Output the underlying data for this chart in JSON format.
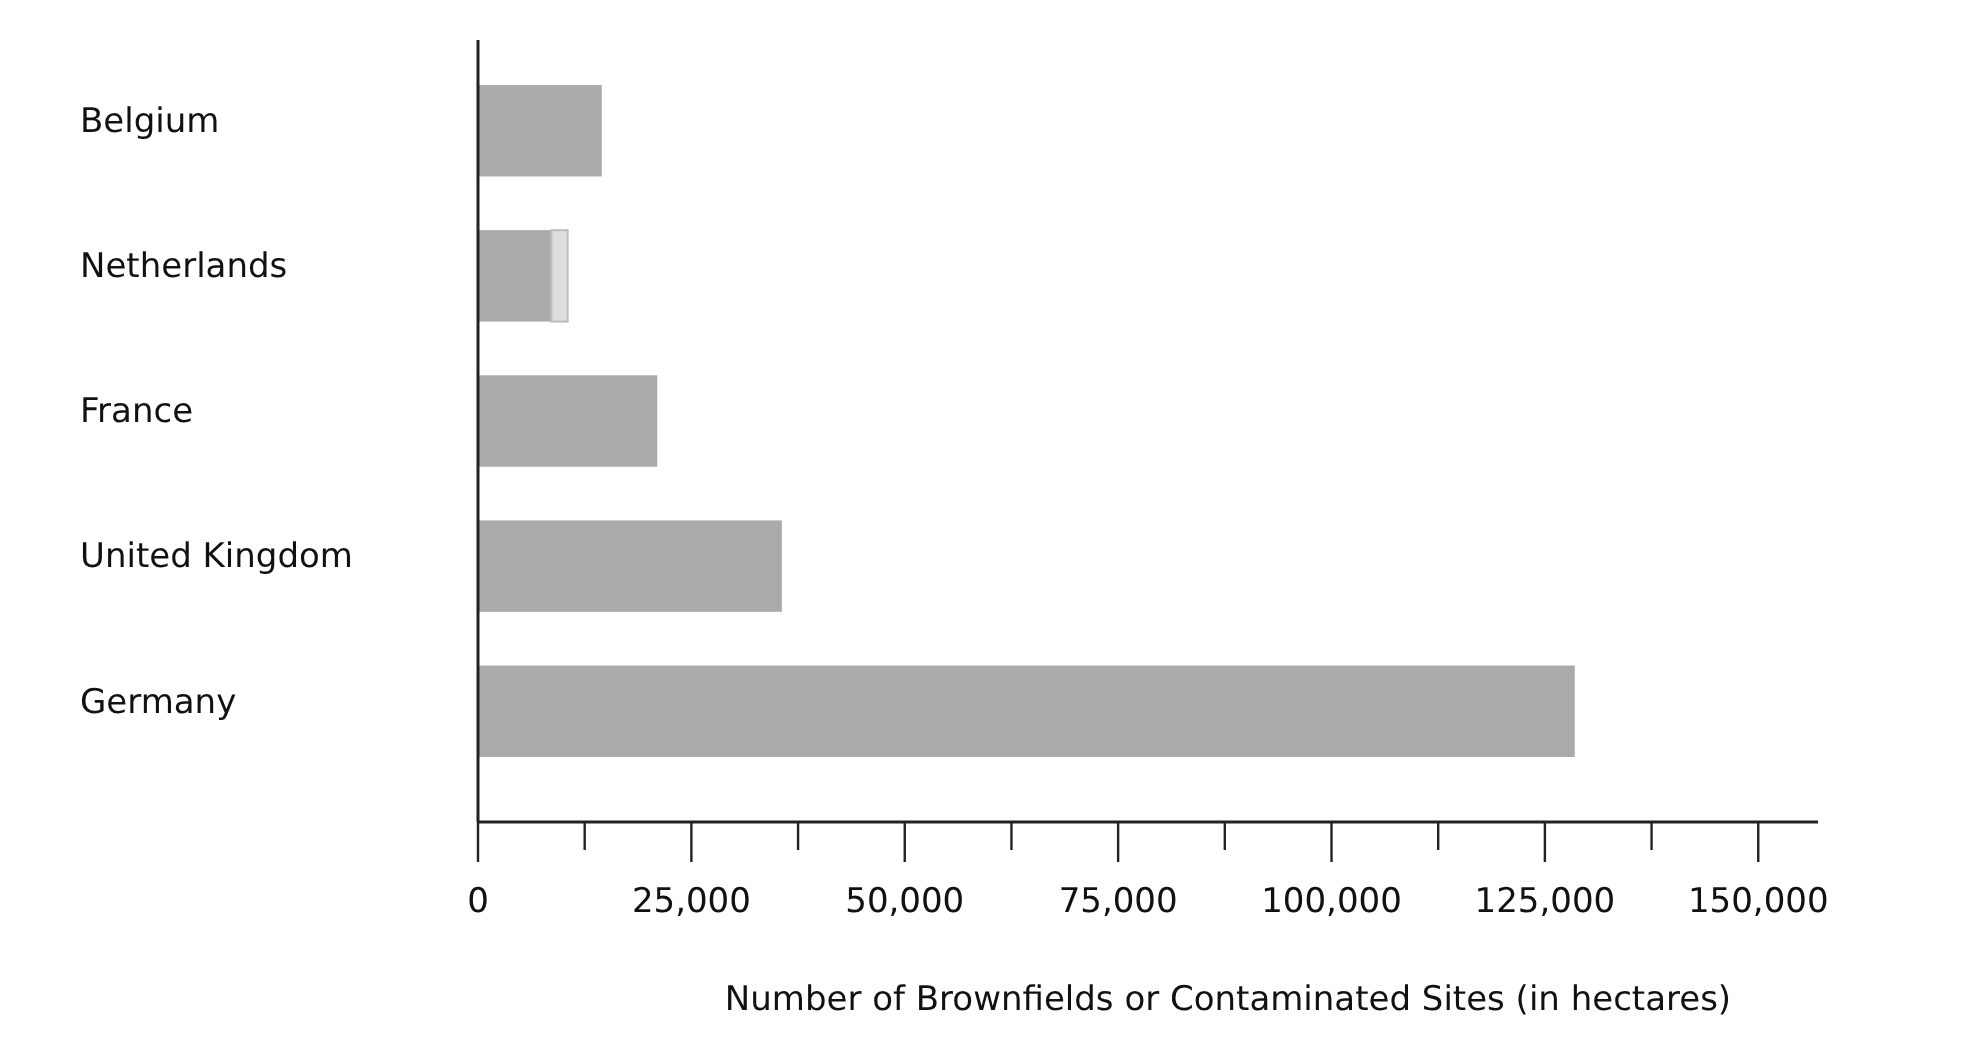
{
  "chart_data": {
    "type": "bar",
    "orientation": "horizontal",
    "stacked": true,
    "xlabel": "Number of Brownfields or Contaminated Sites (in hectares)",
    "categories": [
      "Belgium",
      "Netherlands",
      "France",
      "United Kingdom",
      "Germany"
    ],
    "series": [
      {
        "color": "#aaaaaa",
        "values": [
          14500,
          8600,
          21000,
          35600,
          128500
        ]
      },
      {
        "color": "#dedede",
        "values": [
          null,
          1900,
          null,
          null,
          null
        ]
      }
    ],
    "xlim": [
      0,
      157000
    ],
    "xticks": [
      0,
      {
        "value": 12500,
        "label": null
      },
      {
        "value": 25000,
        "label": "25,000"
      },
      {
        "value": 37500,
        "label": null
      },
      {
        "value": 50000,
        "label": "50,000"
      },
      {
        "value": 62500,
        "label": null
      },
      {
        "value": 75000,
        "label": "75,000"
      },
      {
        "value": 87500,
        "label": null
      },
      {
        "value": 100000,
        "label": "100,000"
      },
      {
        "value": 112500,
        "label": null
      },
      {
        "value": 125000,
        "label": "125,000"
      },
      {
        "value": 137500,
        "label": null
      },
      {
        "value": 150000,
        "label": "150,000"
      }
    ],
    "grid": false
  }
}
